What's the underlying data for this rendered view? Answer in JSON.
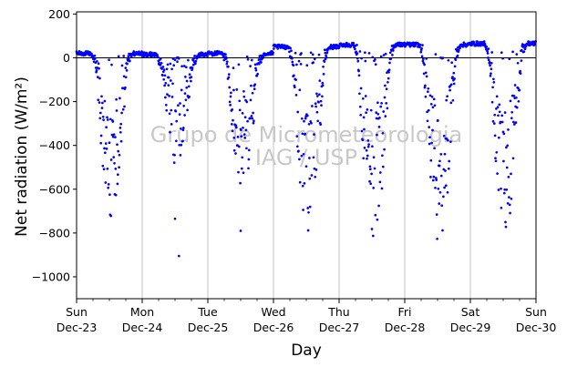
{
  "chart_data": {
    "type": "scatter",
    "xlabel": "Day",
    "ylabel": "Net radiation (W/m²)",
    "ylim": [
      -1100,
      210
    ],
    "xlim": [
      0,
      7
    ],
    "y_ticks": [
      200,
      0,
      -200,
      -400,
      -600,
      -800,
      -1000
    ],
    "x_ticks": [
      {
        "day": "Sun",
        "date": "Dec-23"
      },
      {
        "day": "Mon",
        "date": "Dec-24"
      },
      {
        "day": "Tue",
        "date": "Dec-25"
      },
      {
        "day": "Wed",
        "date": "Dec-26"
      },
      {
        "day": "Thu",
        "date": "Dec-27"
      },
      {
        "day": "Fri",
        "date": "Dec-28"
      },
      {
        "day": "Sat",
        "date": "Dec-29"
      },
      {
        "day": "Sun",
        "date": "Dec-30"
      }
    ],
    "grid": "vertical only",
    "zero_line": true,
    "marker_color": "#0000ff",
    "watermark": [
      "Grupo de Micrometeorologia",
      "IAG / USP"
    ],
    "daily_pattern": [
      {
        "night_value": 20,
        "day_min": -730,
        "outliers": []
      },
      {
        "night_value": 15,
        "day_min": -500,
        "outliers": [
          -735,
          -905
        ]
      },
      {
        "night_value": 20,
        "day_min": -600,
        "outliers": [
          -790
        ]
      },
      {
        "night_value": 50,
        "day_min": -800,
        "outliers": []
      },
      {
        "night_value": 60,
        "day_min": -860,
        "outliers": []
      },
      {
        "night_value": 60,
        "day_min": -860,
        "outliers": []
      },
      {
        "night_value": 65,
        "day_min": -810,
        "outliers": []
      }
    ]
  }
}
